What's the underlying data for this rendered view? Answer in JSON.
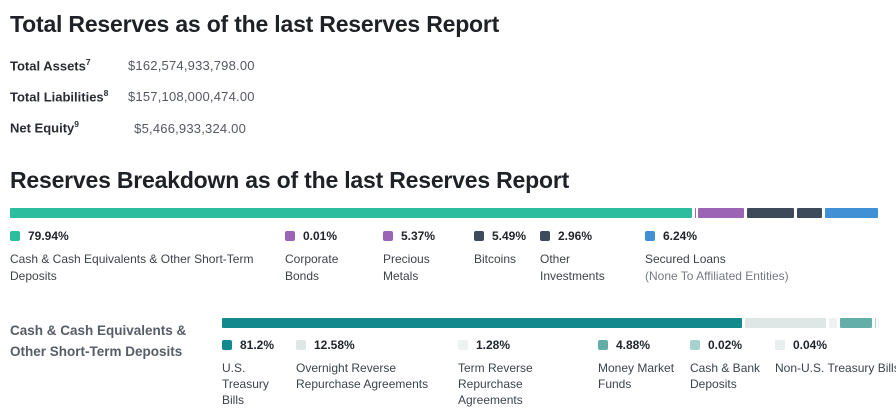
{
  "total_reserves": {
    "title": "Total Reserves as of the last Reserves Report",
    "rows": [
      {
        "label": "Total Assets",
        "sup": "7",
        "value": "$162,574,933,798.00"
      },
      {
        "label": "Total Liabilities",
        "sup": "8",
        "value": "$157,108,000,474.00"
      },
      {
        "label": "Net Equity",
        "sup": "9",
        "value": "$5,466,933,324.00"
      }
    ]
  },
  "breakdown": {
    "title": "Reserves Breakdown as of the last Reserves Report"
  },
  "cash_section": {
    "label_line1": "Cash & Cash Equivalents &",
    "label_line2": "Other Short-Term Deposits"
  },
  "chart_data": [
    {
      "type": "bar",
      "subtype": "horizontal-stacked",
      "title": "Reserves Breakdown as of the last Reserves Report",
      "unit": "%",
      "total": 100,
      "legend_position": "bottom",
      "segments": [
        {
          "label": "Cash & Cash Equivalents & Other Short-Term Deposits",
          "value": 79.94,
          "pct_label": "79.94%",
          "color": "#2cbd9e"
        },
        {
          "label": "Corporate Bonds",
          "value": 0.01,
          "pct_label": "0.01%",
          "color": "#9c64b4"
        },
        {
          "label": "Precious Metals",
          "value": 5.37,
          "pct_label": "5.37%",
          "color": "#9c64b4"
        },
        {
          "label": "Bitcoins",
          "value": 5.49,
          "pct_label": "5.49%",
          "color": "#3c4a5c"
        },
        {
          "label": "Other Investments",
          "value": 2.96,
          "pct_label": "2.96%",
          "color": "#3c4a5c"
        },
        {
          "label": "Secured Loans",
          "sublabel": "(None To Affiliated Entities)",
          "value": 6.24,
          "pct_label": "6.24%",
          "color": "#3f90d4"
        }
      ]
    },
    {
      "type": "bar",
      "subtype": "horizontal-stacked",
      "title": "Cash & Cash Equivalents & Other Short-Term Deposits",
      "unit": "%",
      "total": 100,
      "legend_position": "bottom",
      "segments": [
        {
          "label": "U.S. Treasury Bills",
          "value": 81.2,
          "pct_label": "81.2%",
          "color": "#12898d"
        },
        {
          "label": "Overnight Reverse Repurchase Agreements",
          "value": 12.58,
          "pct_label": "12.58%",
          "color": "#dfe7e6"
        },
        {
          "label": "Term Reverse Repurchase Agreements",
          "value": 1.28,
          "pct_label": "1.28%",
          "color": "#eef3f2"
        },
        {
          "label": "Money Market Funds",
          "value": 4.88,
          "pct_label": "4.88%",
          "color": "#64aea9"
        },
        {
          "label": "Cash & Bank Deposits",
          "value": 0.02,
          "pct_label": "0.02%",
          "color": "#a5d2cc"
        },
        {
          "label": "Non-U.S. Treasury Bills",
          "value": 0.04,
          "pct_label": "0.04%",
          "color": "#e9efee"
        }
      ]
    }
  ]
}
